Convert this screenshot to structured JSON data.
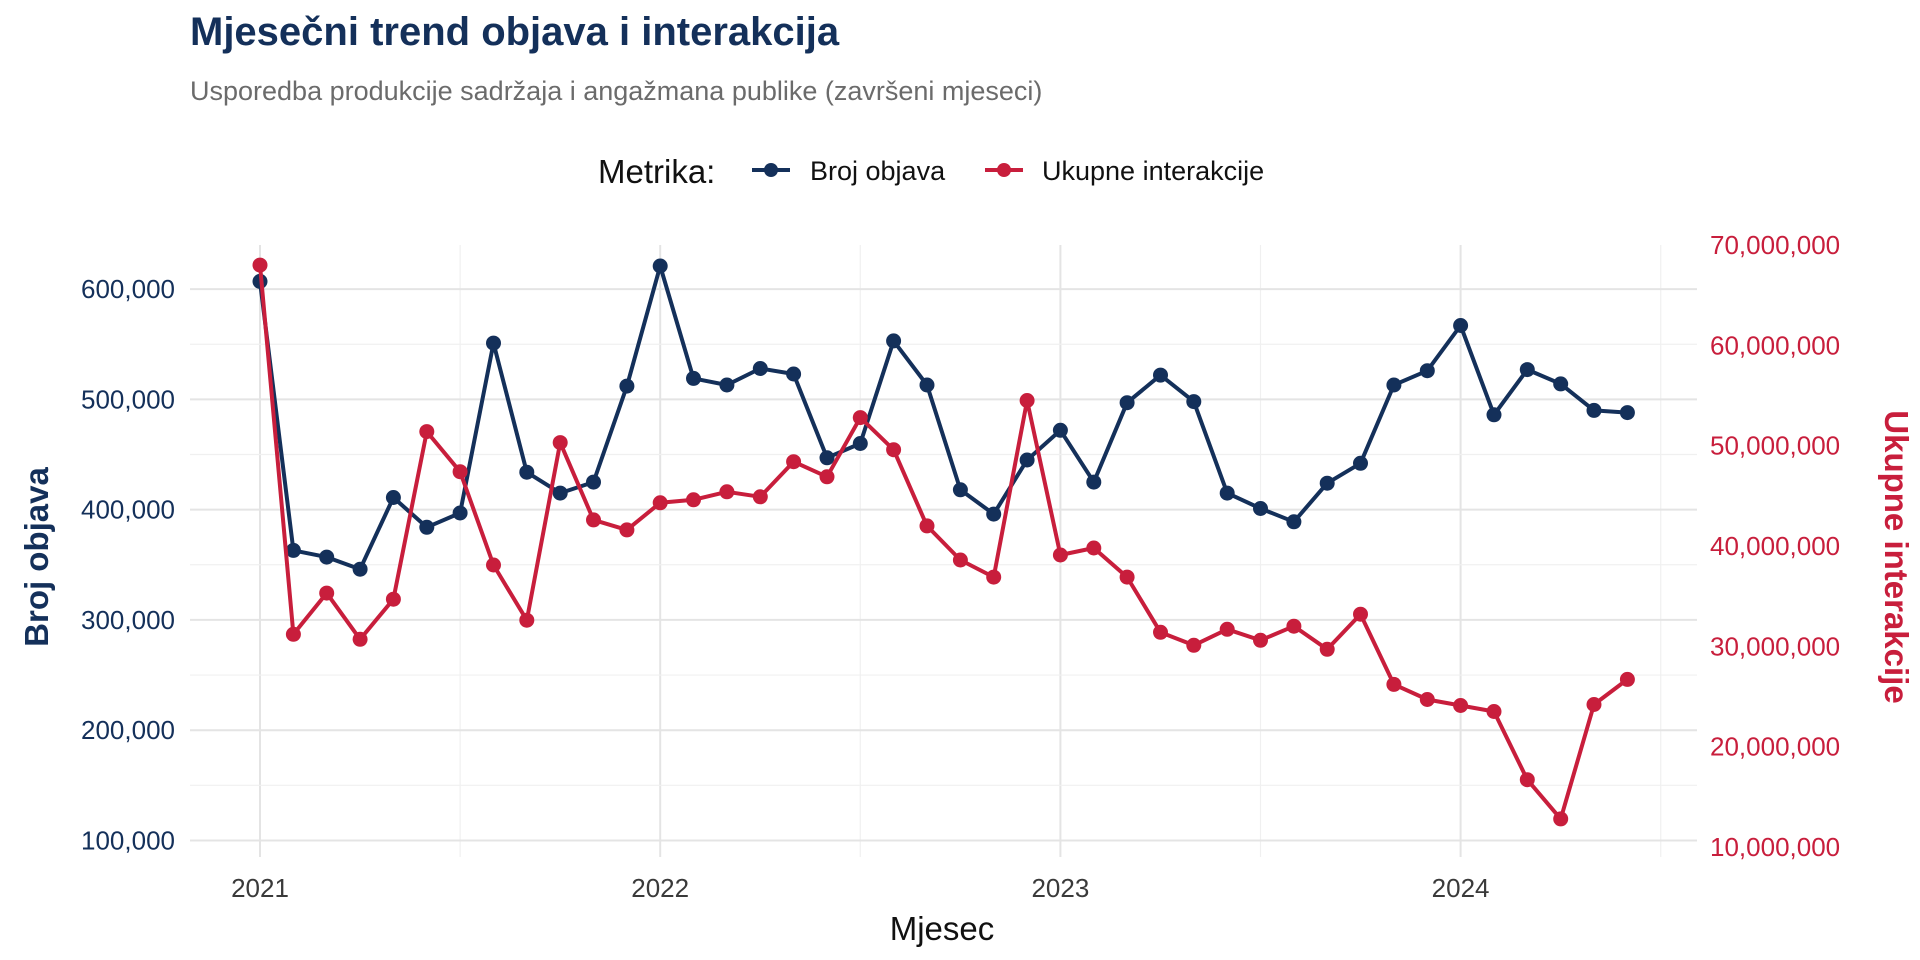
{
  "chart_data": {
    "type": "line",
    "title": "Mjesečni trend objava i interakcija",
    "subtitle": "Usporedba produkcije sadržaja i angažmana publike (završeni mjeseci)",
    "xlabel": "Mjesec",
    "ylabel_left": "Broj objava",
    "ylabel_right": "Ukupne interakcije",
    "legend": {
      "title": "Metrika:",
      "position": "top"
    },
    "x_ticks": [
      "2021",
      "2022",
      "2023",
      "2024"
    ],
    "x": [
      "2021-01",
      "2021-02",
      "2021-03",
      "2021-04",
      "2021-05",
      "2021-06",
      "2021-07",
      "2021-08",
      "2021-09",
      "2021-10",
      "2021-11",
      "2021-12",
      "2022-01",
      "2022-02",
      "2022-03",
      "2022-04",
      "2022-05",
      "2022-06",
      "2022-07",
      "2022-08",
      "2022-09",
      "2022-10",
      "2022-11",
      "2022-12",
      "2023-01",
      "2023-02",
      "2023-03",
      "2023-04",
      "2023-05",
      "2023-06",
      "2023-07",
      "2023-08",
      "2023-09",
      "2023-10",
      "2023-11",
      "2023-12",
      "2024-01",
      "2024-02",
      "2024-03",
      "2024-04",
      "2024-05",
      "2024-06"
    ],
    "y_left_ticks": [
      "100,000",
      "200,000",
      "300,000",
      "400,000",
      "500,000",
      "600,000"
    ],
    "y_right_ticks": [
      "10,000,000",
      "20,000,000",
      "30,000,000",
      "40,000,000",
      "50,000,000",
      "60,000,000",
      "70,000,000"
    ],
    "ylim_left": [
      85000,
      640000
    ],
    "ylim_right": [
      9000000,
      70000000
    ],
    "grid": true,
    "series": [
      {
        "name": "Broj objava",
        "axis": "left",
        "color": "#14305a",
        "values": [
          607000,
          363000,
          357000,
          346000,
          411000,
          384000,
          397000,
          551000,
          434000,
          415000,
          425000,
          512000,
          621000,
          519000,
          513000,
          528000,
          523000,
          447000,
          460000,
          553000,
          513000,
          418000,
          396000,
          445000,
          472000,
          425000,
          497000,
          522000,
          498000,
          415000,
          401000,
          389000,
          424000,
          442000,
          513000,
          526000,
          567000,
          486000,
          527000,
          514000,
          490000,
          488000
        ]
      },
      {
        "name": "Ukupne interakcije",
        "axis": "right",
        "color": "#c81e3c",
        "values": [
          68000000,
          31200000,
          35300000,
          30700000,
          34700000,
          51400000,
          47400000,
          38100000,
          32600000,
          50300000,
          42600000,
          41600000,
          44300000,
          44600000,
          45400000,
          44900000,
          48400000,
          46900000,
          52800000,
          49600000,
          42000000,
          38600000,
          36900000,
          54500000,
          39100000,
          39800000,
          36900000,
          31400000,
          30100000,
          31700000,
          30600000,
          32000000,
          29700000,
          33200000,
          26200000,
          24700000,
          24100000,
          23500000,
          16700000,
          12800000,
          24200000,
          26700000
        ]
      }
    ]
  }
}
